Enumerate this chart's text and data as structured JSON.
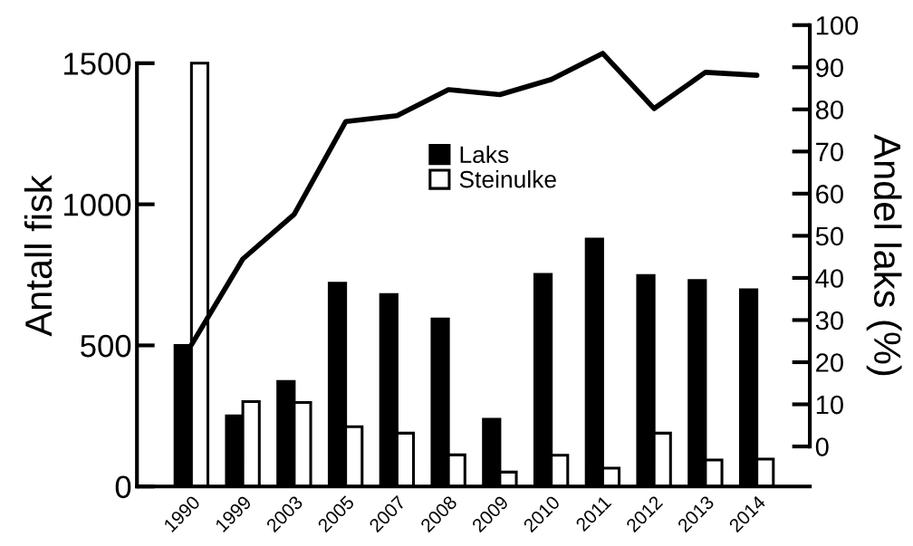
{
  "chart_data": {
    "type": "bar",
    "xlabel": null,
    "ylabel": "Antall fisk",
    "y2label": "Andel laks (%)",
    "categories": [
      "1990",
      "1999",
      "2003",
      "2005",
      "2007",
      "2008",
      "2009",
      "2010",
      "2011",
      "2012",
      "2013",
      "2014"
    ],
    "series": [
      {
        "name": "Laks",
        "color": "#000000",
        "values": [
          500,
          250,
          372,
          720,
          680,
          594,
          238,
          752,
          877,
          748,
          730,
          697
        ]
      },
      {
        "name": "Steinulke",
        "color": "#ffffff",
        "values": [
          1500,
          301,
          298,
          212,
          189,
          112,
          51,
          111,
          65,
          189,
          94,
          97
        ]
      },
      {
        "type": "line",
        "axis": "y2",
        "color": "#000000",
        "values": [
          24.1,
          44.5,
          55.1,
          77.1,
          78.5,
          84.7,
          83.5,
          87.1,
          93.3,
          80.2,
          88.8,
          88.1
        ]
      }
    ],
    "ylim": [
      0,
      1635
    ],
    "yticks": [
      0,
      500,
      1000,
      1500
    ],
    "y2lim": [
      -9.5,
      100
    ],
    "y2ticks": [
      0,
      10,
      20,
      30,
      40,
      50,
      60,
      70,
      80,
      90,
      100
    ],
    "legend": "top",
    "grid": false
  }
}
